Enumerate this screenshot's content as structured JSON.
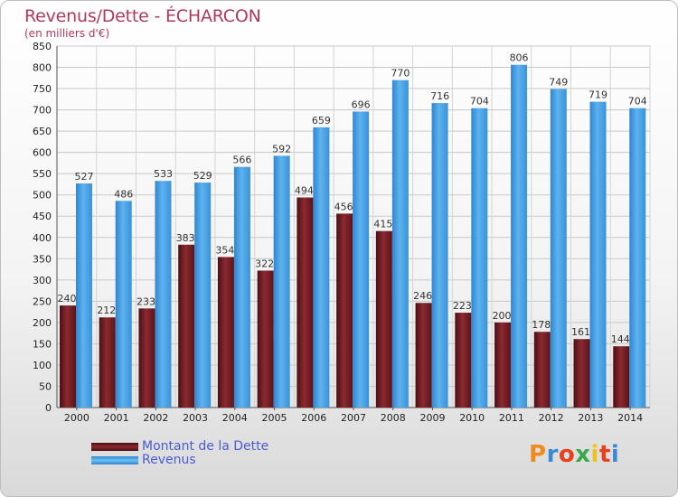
{
  "title": "Revenus/Dette - ÉCHARCON",
  "subtitle": "(en milliers d'€)",
  "logo_text": "Proxiti",
  "colors": {
    "dette": "#7a1f26",
    "revenus": "#4aa3e6",
    "title": "#b03a5b",
    "legend_text": "#4b5cd6"
  },
  "chart_data": {
    "type": "bar",
    "title": "Revenus/Dette - ÉCHARCON",
    "ylabel": "(en milliers d'€)",
    "xlabel": "",
    "ylim": [
      0,
      850
    ],
    "yticks": [
      0,
      50,
      100,
      150,
      200,
      250,
      300,
      350,
      400,
      450,
      500,
      550,
      600,
      650,
      700,
      750,
      800,
      850
    ],
    "grid": true,
    "legend_position": "bottom-left",
    "categories": [
      "2000",
      "2001",
      "2002",
      "2003",
      "2004",
      "2005",
      "2006",
      "2007",
      "2008",
      "2009",
      "2010",
      "2011",
      "2012",
      "2013",
      "2014"
    ],
    "series": [
      {
        "name": "Montant de la Dette",
        "values": [
          240,
          212,
          233,
          383,
          354,
          322,
          494,
          456,
          415,
          246,
          223,
          200,
          178,
          161,
          144
        ]
      },
      {
        "name": "Revenus",
        "values": [
          527,
          486,
          533,
          529,
          566,
          592,
          659,
          696,
          770,
          716,
          704,
          806,
          749,
          719,
          704
        ]
      }
    ]
  }
}
